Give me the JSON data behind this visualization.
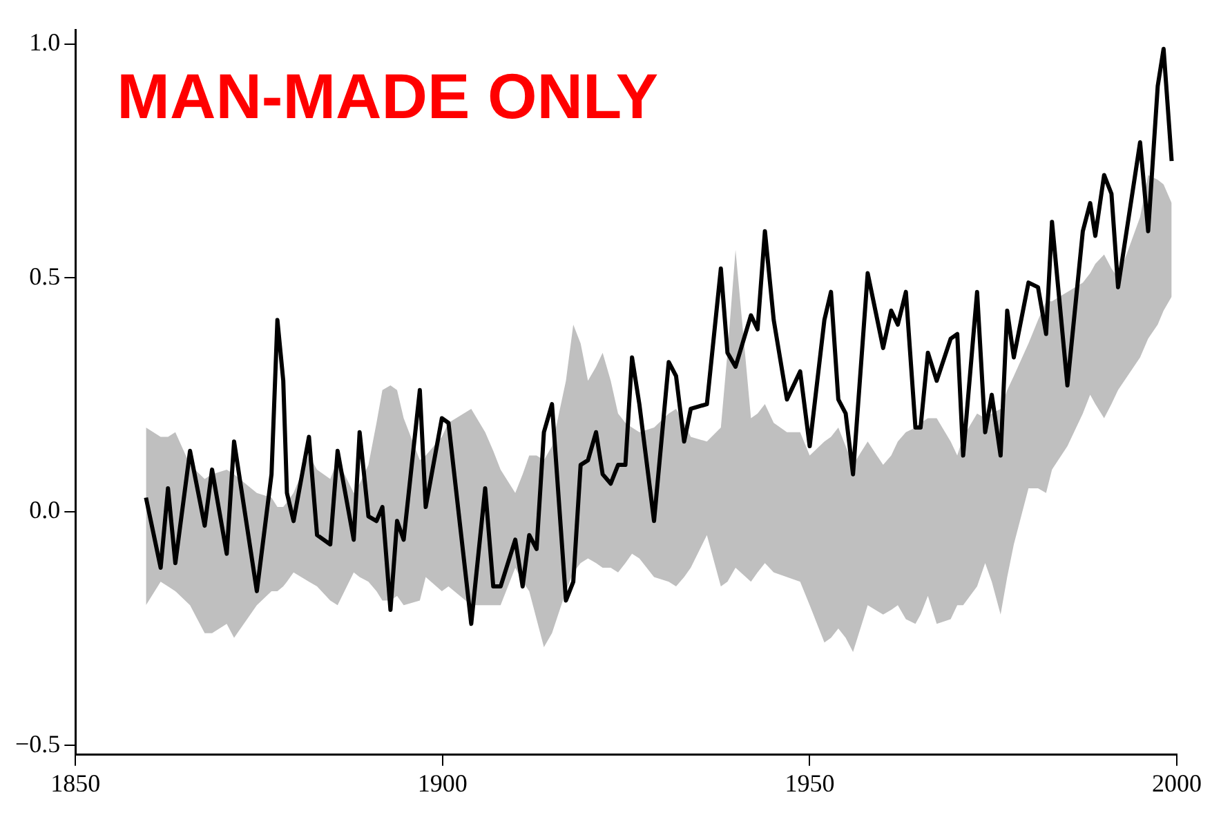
{
  "chart_data": {
    "type": "line",
    "annotations": [
      "MAN-MADE ONLY"
    ],
    "xlim": [
      1850,
      2000
    ],
    "xticks": [
      1850,
      1900,
      1950,
      2000
    ],
    "ylim": [
      -0.52,
      1.03
    ],
    "yticks": [
      {
        "value": -0.5,
        "label": "−0.5"
      },
      {
        "value": 0,
        "label": "0.0"
      },
      {
        "value": 0.5,
        "label": "0.5"
      },
      {
        "value": 1,
        "label": "1.0"
      }
    ],
    "grid": false,
    "legend": false,
    "marker": "none",
    "line_style": "solid",
    "series": [
      {
        "color": "#000000",
        "x": [
          1859.6,
          1861.6,
          1862.6,
          1863.6,
          1865.6,
          1867.6,
          1868.6,
          1870.6,
          1871.6,
          1874.7,
          1876.7,
          1877.5,
          1878.3,
          1878.8,
          1879.7,
          1881.8,
          1882.9,
          1884.7,
          1885.7,
          1887.9,
          1888.7,
          1889.9,
          1891,
          1891.8,
          1892.9,
          1893.8,
          1894.7,
          1896.9,
          1897.7,
          1899.9,
          1900.8,
          1903.9,
          1905.8,
          1906.9,
          1907.9,
          1909.9,
          1910.9,
          1911.8,
          1912.8,
          1913.8,
          1914.9,
          1916.8,
          1917.8,
          1918.8,
          1919.8,
          1920.9,
          1921.8,
          1922.9,
          1923.9,
          1924.9,
          1925.8,
          1926.8,
          1928.8,
          1930.8,
          1931.8,
          1932.9,
          1933.8,
          1936,
          1937.9,
          1938.8,
          1939.9,
          1942,
          1942.9,
          1943.9,
          1945.1,
          1946.9,
          1948.7,
          1950,
          1952,
          1952.9,
          1953.9,
          1954.9,
          1955.9,
          1957.9,
          1960,
          1961.1,
          1962,
          1963.1,
          1964.4,
          1965.1,
          1966.1,
          1967.3,
          1969.2,
          1970.1,
          1970.9,
          1972.8,
          1973.9,
          1974.8,
          1976,
          1976.9,
          1977.8,
          1979.8,
          1981.1,
          1982.2,
          1983,
          1985.1,
          1987.2,
          1988.2,
          1988.9,
          1990.1,
          1991.1,
          1992,
          1995,
          1996.1,
          1997.4,
          1998.2,
          1999.3
        ],
        "values": [
          0.03,
          -0.12,
          0.05,
          -0.11,
          0.13,
          -0.03,
          0.09,
          -0.09,
          0.15,
          -0.17,
          0.08,
          0.41,
          0.28,
          0.04,
          -0.02,
          0.16,
          -0.05,
          -0.07,
          0.13,
          -0.06,
          0.17,
          -0.01,
          -0.02,
          0.01,
          -0.21,
          -0.02,
          -0.06,
          0.26,
          0.01,
          0.2,
          0.19,
          -0.24,
          0.05,
          -0.16,
          -0.16,
          -0.06,
          -0.16,
          -0.05,
          -0.08,
          0.17,
          0.23,
          -0.19,
          -0.15,
          0.1,
          0.11,
          0.17,
          0.08,
          0.06,
          0.1,
          0.1,
          0.33,
          0.23,
          -0.02,
          0.32,
          0.29,
          0.15,
          0.22,
          0.23,
          0.52,
          0.34,
          0.31,
          0.42,
          0.39,
          0.6,
          0.41,
          0.24,
          0.3,
          0.14,
          0.41,
          0.47,
          0.24,
          0.21,
          0.08,
          0.51,
          0.35,
          0.43,
          0.4,
          0.47,
          0.18,
          0.18,
          0.34,
          0.28,
          0.37,
          0.38,
          0.12,
          0.47,
          0.17,
          0.25,
          0.12,
          0.43,
          0.33,
          0.49,
          0.48,
          0.38,
          0.62,
          0.27,
          0.6,
          0.66,
          0.59,
          0.72,
          0.68,
          0.48,
          0.79,
          0.6,
          0.91,
          0.99,
          0.75
        ],
        "upper": [
          0.18,
          0.16,
          0.16,
          0.17,
          0.1,
          0.07,
          0.08,
          0.09,
          0.08,
          0.04,
          0.03,
          0.01,
          0.01,
          0.02,
          0.04,
          0.12,
          0.09,
          0.07,
          0.11,
          0.04,
          0.06,
          0.1,
          0.19,
          0.26,
          0.27,
          0.26,
          0.2,
          0.11,
          0.12,
          0.16,
          0.19,
          0.22,
          0.17,
          0.13,
          0.09,
          0.04,
          0.08,
          0.12,
          0.12,
          0.11,
          0.14,
          0.28,
          0.4,
          0.36,
          0.28,
          0.31,
          0.34,
          0.28,
          0.21,
          0.19,
          0.18,
          0.17,
          0.18,
          0.21,
          0.22,
          0.19,
          0.16,
          0.15,
          0.18,
          0.34,
          0.56,
          0.2,
          0.21,
          0.23,
          0.19,
          0.17,
          0.17,
          0.12,
          0.15,
          0.16,
          0.18,
          0.14,
          0.1,
          0.15,
          0.1,
          0.12,
          0.15,
          0.17,
          0.18,
          0.19,
          0.2,
          0.2,
          0.15,
          0.12,
          0.16,
          0.21,
          0.2,
          0.21,
          0.22,
          0.26,
          0.29,
          0.36,
          0.41,
          0.45,
          0.45,
          0.47,
          0.49,
          0.51,
          0.53,
          0.55,
          0.52,
          0.5,
          0.63,
          0.72,
          0.71,
          0.7,
          0.66
        ],
        "lower": [
          -0.2,
          -0.15,
          -0.16,
          -0.17,
          -0.2,
          -0.26,
          -0.26,
          -0.24,
          -0.27,
          -0.2,
          -0.17,
          -0.17,
          -0.16,
          -0.15,
          -0.13,
          -0.15,
          -0.16,
          -0.19,
          -0.2,
          -0.13,
          -0.14,
          -0.15,
          -0.17,
          -0.19,
          -0.19,
          -0.18,
          -0.2,
          -0.19,
          -0.14,
          -0.17,
          -0.16,
          -0.2,
          -0.2,
          -0.2,
          -0.2,
          -0.12,
          -0.15,
          -0.17,
          -0.23,
          -0.29,
          -0.26,
          -0.17,
          -0.13,
          -0.11,
          -0.1,
          -0.11,
          -0.12,
          -0.12,
          -0.13,
          -0.11,
          -0.09,
          -0.1,
          -0.14,
          -0.15,
          -0.16,
          -0.14,
          -0.12,
          -0.05,
          -0.16,
          -0.15,
          -0.12,
          -0.15,
          -0.13,
          -0.11,
          -0.13,
          -0.14,
          -0.15,
          -0.2,
          -0.28,
          -0.27,
          -0.25,
          -0.27,
          -0.3,
          -0.2,
          -0.22,
          -0.21,
          -0.2,
          -0.23,
          -0.24,
          -0.22,
          -0.18,
          -0.24,
          -0.23,
          -0.2,
          -0.2,
          -0.16,
          -0.11,
          -0.15,
          -0.22,
          -0.14,
          -0.07,
          0.05,
          0.05,
          0.04,
          0.09,
          0.14,
          0.21,
          0.25,
          0.23,
          0.2,
          0.23,
          0.26,
          0.33,
          0.37,
          0.4,
          0.43,
          0.46
        ]
      }
    ]
  }
}
